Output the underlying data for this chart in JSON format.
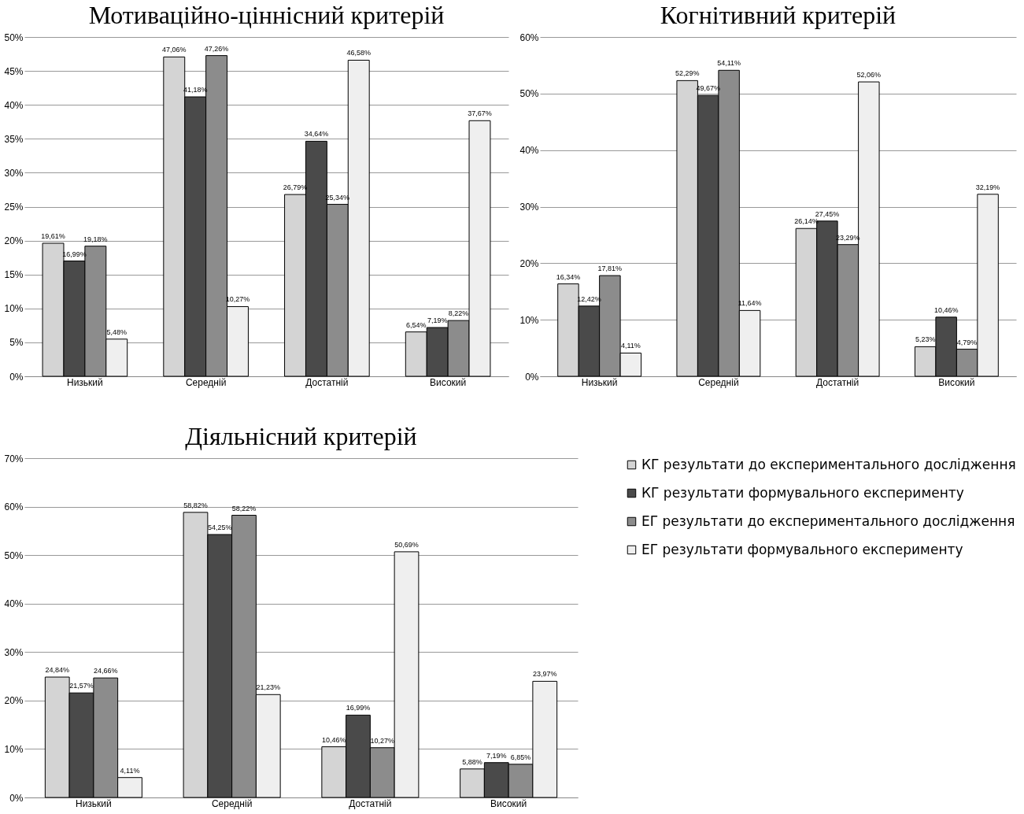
{
  "chart_data": [
    {
      "type": "bar",
      "title": "Мотиваційно-ціннісний критерій",
      "categories": [
        "Низький",
        "Середній",
        "Достатній",
        "Високий"
      ],
      "ylim": [
        0,
        50
      ],
      "yticks": [
        {
          "value": 0,
          "label": "0%"
        },
        {
          "value": 5,
          "label": "5%"
        },
        {
          "value": 10,
          "label": "10%"
        },
        {
          "value": 15,
          "label": "15%"
        },
        {
          "value": 20,
          "label": "20%"
        },
        {
          "value": 25,
          "label": "25%"
        },
        {
          "value": 30,
          "label": "30%"
        },
        {
          "value": 35,
          "label": "35%"
        },
        {
          "value": 40,
          "label": "40%"
        },
        {
          "value": 45,
          "label": "45%"
        },
        {
          "value": 50,
          "label": "50%"
        }
      ],
      "grid": "y",
      "series": [
        {
          "color": "#d4d4d4",
          "values": [
            19.61,
            47.06,
            26.79,
            6.54
          ],
          "value_labels": [
            "19,61%",
            "47,06%",
            "26,79%",
            "6,54%"
          ]
        },
        {
          "color": "#4a4a4a",
          "values": [
            16.99,
            41.18,
            34.64,
            7.19
          ],
          "value_labels": [
            "16,99%",
            "41,18%",
            "34,64%",
            "7,19%"
          ]
        },
        {
          "color": "#8c8c8c",
          "values": [
            19.18,
            47.26,
            25.34,
            8.22
          ],
          "value_labels": [
            "19,18%",
            "47,26%",
            "25,34%",
            "8,22%"
          ]
        },
        {
          "color": "#efefef",
          "values": [
            5.48,
            10.27,
            46.58,
            37.67
          ],
          "value_labels": [
            "5,48%",
            "10,27%",
            "46,58%",
            "37,67%"
          ]
        }
      ]
    },
    {
      "type": "bar",
      "title": "Когнітивний критерій",
      "categories": [
        "Низький",
        "Середній",
        "Достатній",
        "Високий"
      ],
      "ylim": [
        0,
        60
      ],
      "yticks": [
        {
          "value": 0,
          "label": "0%"
        },
        {
          "value": 10,
          "label": "10%"
        },
        {
          "value": 20,
          "label": "20%"
        },
        {
          "value": 30,
          "label": "30%"
        },
        {
          "value": 40,
          "label": "40%"
        },
        {
          "value": 50,
          "label": "50%"
        },
        {
          "value": 60,
          "label": "60%"
        }
      ],
      "grid": "y",
      "series": [
        {
          "color": "#d4d4d4",
          "values": [
            16.34,
            52.29,
            26.14,
            5.23
          ],
          "value_labels": [
            "16,34%",
            "52,29%",
            "26,14%",
            "5,23%"
          ]
        },
        {
          "color": "#4a4a4a",
          "values": [
            12.42,
            49.67,
            27.45,
            10.46
          ],
          "value_labels": [
            "12,42%",
            "49,67%",
            "27,45%",
            "10,46%"
          ]
        },
        {
          "color": "#8c8c8c",
          "values": [
            17.81,
            54.11,
            23.29,
            4.79
          ],
          "value_labels": [
            "17,81%",
            "54,11%",
            "23,29%",
            "4,79%"
          ]
        },
        {
          "color": "#efefef",
          "values": [
            4.11,
            11.64,
            52.06,
            32.19
          ],
          "value_labels": [
            "4,11%",
            "11,64%",
            "52,06%",
            "32,19%"
          ]
        }
      ]
    },
    {
      "type": "bar",
      "title": "Діяльнісний критерій",
      "categories": [
        "Низький",
        "Середній",
        "Достатній",
        "Високий"
      ],
      "ylim": [
        0,
        70
      ],
      "yticks": [
        {
          "value": 0,
          "label": "0%"
        },
        {
          "value": 10,
          "label": "10%"
        },
        {
          "value": 20,
          "label": "20%"
        },
        {
          "value": 30,
          "label": "30%"
        },
        {
          "value": 40,
          "label": "40%"
        },
        {
          "value": 50,
          "label": "50%"
        },
        {
          "value": 60,
          "label": "60%"
        },
        {
          "value": 70,
          "label": "70%"
        }
      ],
      "grid": "y",
      "legend": "right",
      "series": [
        {
          "name": "КГ результати до експериментального дослідження",
          "color": "#d4d4d4",
          "values": [
            24.84,
            58.82,
            10.46,
            5.88
          ],
          "value_labels": [
            "24,84%",
            "58,82%",
            "10,46%",
            "5,88%"
          ]
        },
        {
          "name": "КГ результати формувального експерименту",
          "color": "#4a4a4a",
          "values": [
            21.57,
            54.25,
            16.99,
            7.19
          ],
          "value_labels": [
            "21,57%",
            "54,25%",
            "16,99%",
            "7,19%"
          ]
        },
        {
          "name": "ЕГ результати до експериментального дослідження",
          "color": "#8c8c8c",
          "values": [
            24.66,
            58.22,
            10.27,
            6.85
          ],
          "value_labels": [
            "24,66%",
            "58,22%",
            "10,27%",
            "6,85%"
          ]
        },
        {
          "name": "ЕГ результати формувального експерименту",
          "color": "#efefef",
          "values": [
            4.11,
            21.23,
            50.69,
            23.97
          ],
          "value_labels": [
            "4,11%",
            "21,23%",
            "50,69%",
            "23,97%"
          ]
        }
      ]
    }
  ]
}
